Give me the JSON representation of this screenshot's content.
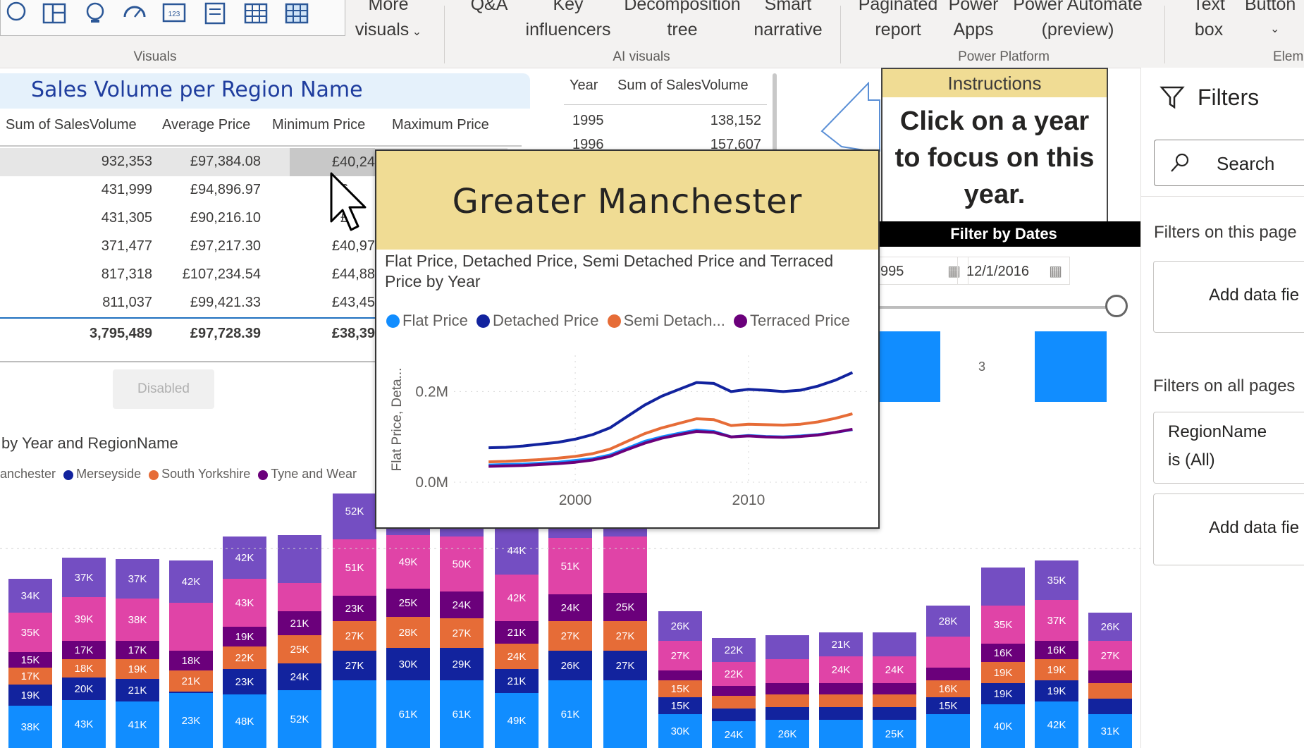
{
  "ribbon": {
    "more_visuals": "More",
    "more_visuals_2": "visuals",
    "qa": "Q&A",
    "key_influencers_1": "Key",
    "key_influencers_2": "influencers",
    "decomp_1": "Decomposition",
    "decomp_2": "tree",
    "smart_1": "Smart",
    "smart_2": "narrative",
    "paginated_1": "Paginated",
    "paginated_2": "report",
    "powerapps_1": "Power",
    "powerapps_2": "Apps",
    "automate_1": "Power Automate",
    "automate_2": "(preview)",
    "textbox_1": "Text",
    "textbox_2": "box",
    "buttons_1": "Button",
    "groups": {
      "visuals": "Visuals",
      "ai": "AI visuals",
      "platform": "Power Platform",
      "elements": "Elem"
    }
  },
  "region_table": {
    "title": "Sales Volume per Region Name",
    "headers": [
      "Sum of SalesVolume",
      "Average Price",
      "Minimum Price",
      "Maximum Price"
    ],
    "rows": [
      [
        "932,353",
        "£97,384.08",
        "£40,24"
      ],
      [
        "431,999",
        "£94,896.97",
        "£"
      ],
      [
        "431,305",
        "£90,216.10",
        "£"
      ],
      [
        "371,477",
        "£97,217.30",
        "£40,97"
      ],
      [
        "817,318",
        "£107,234.54",
        "£44,88"
      ],
      [
        "811,037",
        "£99,421.33",
        "£43,45"
      ]
    ],
    "total": [
      "3,795,489",
      "£97,728.39",
      "£38,39"
    ]
  },
  "disabled_button": "Disabled",
  "stacked": {
    "title": "by Year and RegionName",
    "legend": [
      "anchester",
      "Merseyside",
      "South Yorkshire",
      "Tyne and Wear"
    ],
    "colors": {
      "gm": "#118dff",
      "mers": "#12239e",
      "sy": "#e66c37",
      "tw": "#6b007b",
      "pink": "#e044a7",
      "purple": "#744ec2"
    }
  },
  "year_table": {
    "headers": [
      "Year",
      "Sum of SalesVolume"
    ],
    "rows": [
      [
        "1995",
        "138,152"
      ],
      [
        "1996",
        "157,607"
      ]
    ]
  },
  "instructions": {
    "title": "Instructions",
    "body": "Click on a year to focus on this year."
  },
  "filter_dates": {
    "title": "Filter by Dates",
    "start": "995",
    "end": "12/1/2016",
    "card_label": "3"
  },
  "filters_pane": {
    "title": "Filters",
    "search": "Search",
    "on_this_page": "Filters on this page",
    "add_field_1": "Add data fie",
    "on_all_pages": "Filters on all pages",
    "region_filter_1": "RegionName",
    "region_filter_2": "is (All)",
    "add_field_2": "Add data fie"
  },
  "tooltip": {
    "title": "Greater Manchester",
    "subtitle": "Flat Price, Detached Price, Semi Detached Price and Terraced Price by Year",
    "legend": [
      {
        "label": "Flat Price",
        "color": "#118dff"
      },
      {
        "label": "Detached Price",
        "color": "#12239e"
      },
      {
        "label": "Semi Detach...",
        "color": "#e66c37"
      },
      {
        "label": "Terraced Price",
        "color": "#6b007b"
      }
    ],
    "y_axis_label": "Flat Price, Deta...",
    "y_ticks": [
      "0.2M",
      "0.0M"
    ],
    "x_ticks": [
      "2000",
      "2010"
    ]
  },
  "chart_data": {
    "type": "line",
    "title": "Flat Price, Detached Price, Semi Detached Price and Terraced Price by Year",
    "x": [
      1995,
      1996,
      1997,
      1998,
      1999,
      2000,
      2001,
      2002,
      2003,
      2004,
      2005,
      2006,
      2007,
      2008,
      2009,
      2010,
      2011,
      2012,
      2013,
      2014,
      2015,
      2016
    ],
    "ylim": [
      0,
      280000
    ],
    "series": [
      {
        "name": "Flat Price",
        "values": [
          38000,
          39000,
          40000,
          42000,
          44000,
          48000,
          52000,
          60000,
          75000,
          90000,
          100000,
          108000,
          115000,
          112000,
          100000,
          103000,
          101000,
          100000,
          102000,
          105000,
          110000,
          116000
        ]
      },
      {
        "name": "Detached Price",
        "values": [
          76000,
          77000,
          80000,
          84000,
          88000,
          95000,
          105000,
          120000,
          145000,
          170000,
          190000,
          205000,
          220000,
          218000,
          200000,
          205000,
          203000,
          200000,
          203000,
          212000,
          225000,
          242000
        ]
      },
      {
        "name": "Semi Detached Price",
        "values": [
          45000,
          46000,
          48000,
          50000,
          53000,
          57000,
          63000,
          73000,
          90000,
          107000,
          120000,
          130000,
          140000,
          138000,
          125000,
          128000,
          127000,
          126000,
          128000,
          133000,
          141000,
          151000
        ]
      },
      {
        "name": "Terraced Price",
        "values": [
          35000,
          36000,
          37000,
          39000,
          41000,
          44000,
          49000,
          57000,
          72000,
          86000,
          97000,
          105000,
          112000,
          110000,
          100000,
          102000,
          100000,
          99000,
          101000,
          104000,
          110000,
          117000
        ]
      }
    ]
  }
}
